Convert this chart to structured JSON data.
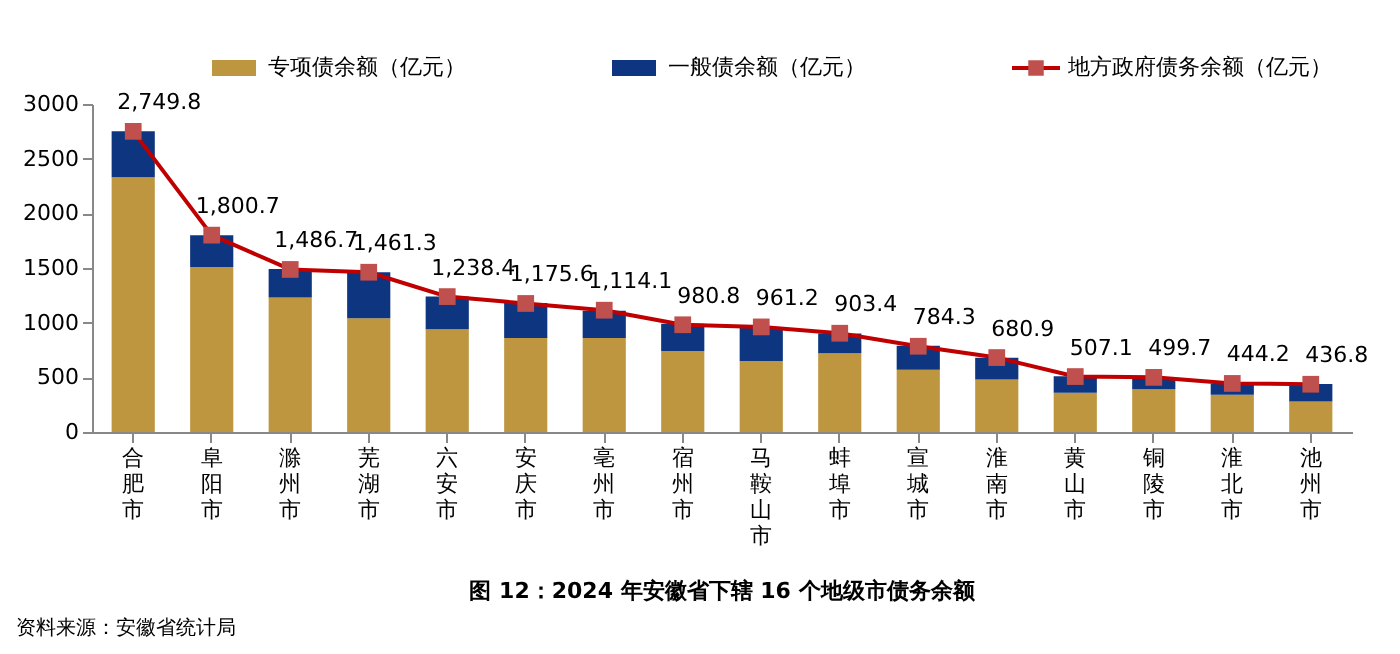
{
  "chart_data": {
    "type": "bar",
    "stacked": true,
    "title": "图 12：2024 年安徽省下辖 16 个地级市债务余额",
    "annotations": [
      "资料来源：安徽省统计局"
    ],
    "categories": [
      "合肥市",
      "阜阳市",
      "滁州市",
      "芜湖市",
      "六安市",
      "安庆市",
      "亳州市",
      "宿州市",
      "马鞍山市",
      "蚌埠市",
      "宣城市",
      "淮南市",
      "黄山市",
      "铜陵市",
      "淮北市",
      "池州市"
    ],
    "ylim": [
      0,
      3000
    ],
    "yticks": [
      0,
      500,
      1000,
      1500,
      2000,
      2500,
      3000
    ],
    "grid": false,
    "legend": "top",
    "series": [
      {
        "name": "专项债余额（亿元）",
        "color": "#be9640",
        "values": [
          2330,
          1510,
          1230,
          1040,
          940,
          860,
          860,
          740,
          650,
          720,
          570,
          480,
          360,
          390,
          340,
          280
        ]
      },
      {
        "name": "一般债余额（亿元）",
        "color": "#0e3580",
        "values": [
          420,
          290,
          260,
          420,
          300,
          320,
          250,
          250,
          310,
          180,
          220,
          200,
          150,
          110,
          100,
          160
        ]
      },
      {
        "name": "地方政府债务余额（亿元）",
        "type": "line",
        "color": "#c00000",
        "marker": "square",
        "line_style": "solid",
        "values": [
          2749.8,
          1800.7,
          1486.7,
          1461.3,
          1238.4,
          1175.6,
          1114.1,
          980.8,
          961.2,
          903.4,
          784.3,
          680.9,
          507.1,
          499.7,
          444.2,
          436.8
        ],
        "value_labels": [
          "2,749.8",
          "1,800.7",
          "1,486.7",
          "1,461.3",
          "1,238.4",
          "1,175.6",
          "1,114.1",
          "980.8",
          "961.2",
          "903.4",
          "784.3",
          "680.9",
          "507.1",
          "499.7",
          "444.2",
          "436.8"
        ]
      }
    ]
  }
}
